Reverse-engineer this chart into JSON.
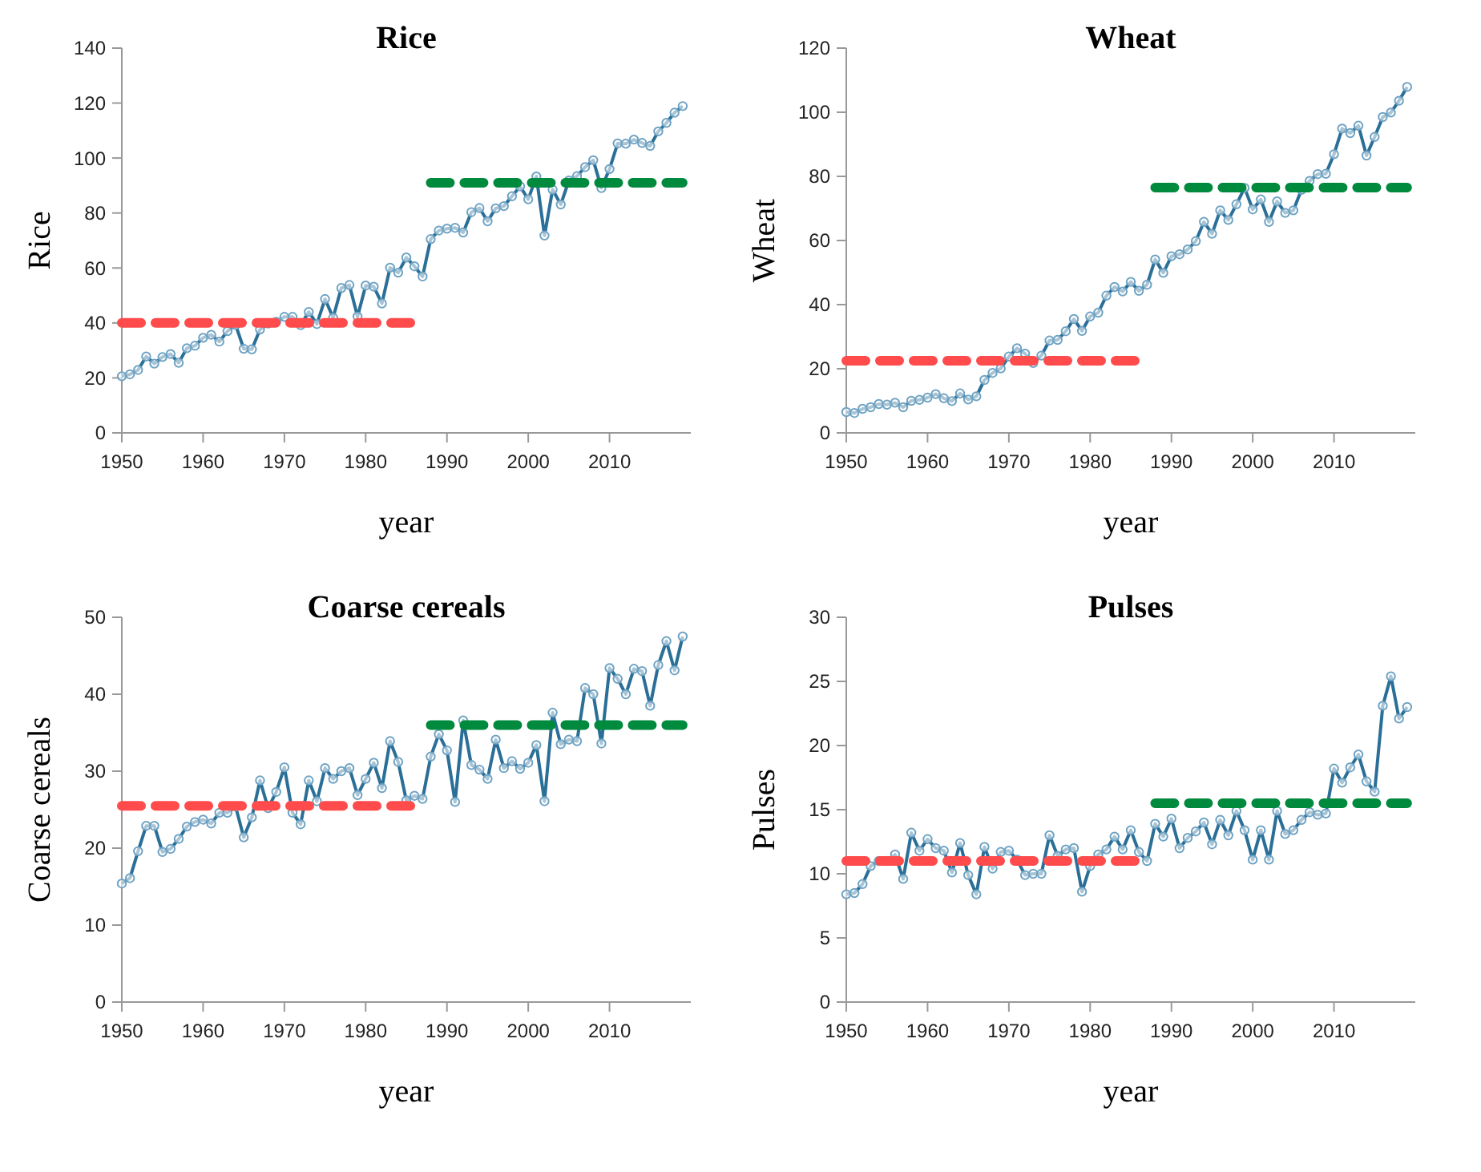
{
  "chart_data": [
    {
      "type": "line",
      "title": "Rice",
      "xlabel": "year",
      "ylabel": "Rice",
      "xlim": [
        1950,
        2020
      ],
      "xticks": [
        1950,
        1960,
        1970,
        1980,
        1990,
        2000,
        2010
      ],
      "ylim": [
        0,
        140
      ],
      "yticks": [
        0,
        20,
        40,
        60,
        80,
        100,
        120,
        140
      ],
      "series": [
        {
          "color": "#2a6f97",
          "marker": "circle",
          "x": [
            1950,
            1951,
            1952,
            1953,
            1954,
            1955,
            1956,
            1957,
            1958,
            1959,
            1960,
            1961,
            1962,
            1963,
            1964,
            1965,
            1966,
            1967,
            1968,
            1969,
            1970,
            1971,
            1972,
            1973,
            1974,
            1975,
            1976,
            1977,
            1978,
            1979,
            1980,
            1981,
            1982,
            1983,
            1984,
            1985,
            1986,
            1987,
            1988,
            1989,
            1990,
            1991,
            1992,
            1993,
            1994,
            1995,
            1996,
            1997,
            1998,
            1999,
            2000,
            2001,
            2002,
            2003,
            2004,
            2005,
            2006,
            2007,
            2008,
            2009,
            2010,
            2011,
            2012,
            2013,
            2014,
            2015,
            2016,
            2017,
            2018,
            2019
          ],
          "values": [
            20.6,
            21.3,
            22.9,
            27.8,
            25.2,
            27.6,
            28.7,
            25.5,
            30.8,
            31.7,
            34.6,
            35.7,
            33.2,
            37.0,
            39.3,
            30.6,
            30.4,
            37.6,
            39.8,
            40.4,
            42.2,
            42.2,
            39.2,
            44.0,
            39.6,
            48.7,
            41.9,
            52.7,
            53.8,
            42.3,
            53.6,
            53.2,
            47.1,
            60.1,
            58.3,
            63.8,
            60.6,
            56.9,
            70.5,
            73.6,
            74.3,
            74.6,
            72.9,
            80.3,
            81.8,
            77.0,
            81.7,
            82.5,
            86.1,
            89.7,
            85.0,
            93.3,
            71.8,
            88.5,
            83.1,
            91.8,
            93.4,
            96.7,
            99.2,
            89.1,
            96.0,
            105.3,
            105.2,
            106.7,
            105.5,
            104.4,
            109.7,
            112.8,
            116.5,
            118.9
          ]
        },
        {
          "type": "line",
          "color": "#ff4b4b",
          "marker": "none",
          "line_style": "dashed",
          "x": [
            1950,
            1987
          ],
          "values": [
            40,
            40
          ]
        },
        {
          "type": "line",
          "color": "#008a3e",
          "marker": "none",
          "line_style": "dashed",
          "x": [
            1988,
            2019
          ],
          "values": [
            91,
            91
          ]
        }
      ]
    },
    {
      "type": "line",
      "title": "Wheat",
      "xlabel": "year",
      "ylabel": "Wheat",
      "xlim": [
        1950,
        2020
      ],
      "xticks": [
        1950,
        1960,
        1970,
        1980,
        1990,
        2000,
        2010
      ],
      "ylim": [
        0,
        120
      ],
      "yticks": [
        0,
        20,
        40,
        60,
        80,
        100,
        120
      ],
      "series": [
        {
          "color": "#2a6f97",
          "marker": "circle",
          "x": [
            1950,
            1951,
            1952,
            1953,
            1954,
            1955,
            1956,
            1957,
            1958,
            1959,
            1960,
            1961,
            1962,
            1963,
            1964,
            1965,
            1966,
            1967,
            1968,
            1969,
            1970,
            1971,
            1972,
            1973,
            1974,
            1975,
            1976,
            1977,
            1978,
            1979,
            1980,
            1981,
            1982,
            1983,
            1984,
            1985,
            1986,
            1987,
            1988,
            1989,
            1990,
            1991,
            1992,
            1993,
            1994,
            1995,
            1996,
            1997,
            1998,
            1999,
            2000,
            2001,
            2002,
            2003,
            2004,
            2005,
            2006,
            2007,
            2008,
            2009,
            2010,
            2011,
            2012,
            2013,
            2014,
            2015,
            2016,
            2017,
            2018,
            2019
          ],
          "values": [
            6.5,
            6.2,
            7.5,
            8.0,
            9.0,
            8.8,
            9.4,
            8.0,
            10.0,
            10.3,
            11.0,
            12.1,
            10.8,
            9.9,
            12.3,
            10.4,
            11.4,
            16.5,
            18.7,
            20.1,
            23.8,
            26.4,
            24.7,
            21.8,
            24.1,
            28.8,
            29.0,
            31.7,
            35.5,
            31.8,
            36.3,
            37.5,
            42.8,
            45.5,
            44.1,
            47.1,
            44.3,
            46.2,
            54.1,
            49.9,
            55.1,
            55.7,
            57.2,
            59.8,
            65.8,
            62.1,
            69.4,
            66.4,
            71.3,
            76.4,
            69.7,
            72.8,
            65.8,
            72.2,
            68.6,
            69.4,
            75.8,
            78.6,
            80.7,
            80.8,
            86.9,
            94.9,
            93.5,
            95.8,
            86.5,
            92.3,
            98.5,
            99.9,
            103.6,
            107.9
          ]
        },
        {
          "type": "line",
          "color": "#ff4b4b",
          "marker": "none",
          "line_style": "dashed",
          "x": [
            1950,
            1987
          ],
          "values": [
            22.5,
            22.5
          ]
        },
        {
          "type": "line",
          "color": "#008a3e",
          "marker": "none",
          "line_style": "dashed",
          "x": [
            1988,
            2019
          ],
          "values": [
            76.5,
            76.5
          ]
        }
      ]
    },
    {
      "type": "line",
      "title": "Coarse cereals",
      "xlabel": "year",
      "ylabel": "Coarse cereals",
      "xlim": [
        1950,
        2020
      ],
      "xticks": [
        1950,
        1960,
        1970,
        1980,
        1990,
        2000,
        2010
      ],
      "ylim": [
        0,
        50
      ],
      "yticks": [
        0,
        10,
        20,
        30,
        40,
        50
      ],
      "series": [
        {
          "color": "#2a6f97",
          "marker": "circle",
          "x": [
            1950,
            1951,
            1952,
            1953,
            1954,
            1955,
            1956,
            1957,
            1958,
            1959,
            1960,
            1961,
            1962,
            1963,
            1964,
            1965,
            1966,
            1967,
            1968,
            1969,
            1970,
            1971,
            1972,
            1973,
            1974,
            1975,
            1976,
            1977,
            1978,
            1979,
            1980,
            1981,
            1982,
            1983,
            1984,
            1985,
            1986,
            1987,
            1988,
            1989,
            1990,
            1991,
            1992,
            1993,
            1994,
            1995,
            1996,
            1997,
            1998,
            1999,
            2000,
            2001,
            2002,
            2003,
            2004,
            2005,
            2006,
            2007,
            2008,
            2009,
            2010,
            2011,
            2012,
            2013,
            2014,
            2015,
            2016,
            2017,
            2018,
            2019
          ],
          "values": [
            15.4,
            16.1,
            19.6,
            22.9,
            22.9,
            19.5,
            19.9,
            21.2,
            22.8,
            23.4,
            23.7,
            23.2,
            24.6,
            24.6,
            25.4,
            21.4,
            24.0,
            28.8,
            25.2,
            27.3,
            30.5,
            24.6,
            23.1,
            28.8,
            26.1,
            30.4,
            29.0,
            30.0,
            30.4,
            26.9,
            29.0,
            31.1,
            27.8,
            33.9,
            31.2,
            26.2,
            26.8,
            26.4,
            31.9,
            34.8,
            32.7,
            26.0,
            36.6,
            30.8,
            30.2,
            29.0,
            34.1,
            30.4,
            31.3,
            30.3,
            31.1,
            33.4,
            26.1,
            37.6,
            33.5,
            34.1,
            33.9,
            40.8,
            40.0,
            33.6,
            43.4,
            42.0,
            40.0,
            43.3,
            43.0,
            38.5,
            43.8,
            46.9,
            43.1,
            47.5
          ]
        },
        {
          "type": "line",
          "color": "#ff4b4b",
          "marker": "none",
          "line_style": "dashed",
          "x": [
            1950,
            1987
          ],
          "values": [
            25.5,
            25.5
          ]
        },
        {
          "type": "line",
          "color": "#008a3e",
          "marker": "none",
          "line_style": "dashed",
          "x": [
            1988,
            2019
          ],
          "values": [
            36,
            36
          ]
        }
      ]
    },
    {
      "type": "line",
      "title": "Pulses",
      "xlabel": "year",
      "ylabel": "Pulses",
      "xlim": [
        1950,
        2020
      ],
      "xticks": [
        1950,
        1960,
        1970,
        1980,
        1990,
        2000,
        2010
      ],
      "ylim": [
        0,
        30
      ],
      "yticks": [
        0,
        5,
        10,
        15,
        20,
        25,
        30
      ],
      "series": [
        {
          "color": "#2a6f97",
          "marker": "circle",
          "x": [
            1950,
            1951,
            1952,
            1953,
            1954,
            1955,
            1956,
            1957,
            1958,
            1959,
            1960,
            1961,
            1962,
            1963,
            1964,
            1965,
            1966,
            1967,
            1968,
            1969,
            1970,
            1971,
            1972,
            1973,
            1974,
            1975,
            1976,
            1977,
            1978,
            1979,
            1980,
            1981,
            1982,
            1983,
            1984,
            1985,
            1986,
            1987,
            1988,
            1989,
            1990,
            1991,
            1992,
            1993,
            1994,
            1995,
            1996,
            1997,
            1998,
            1999,
            2000,
            2001,
            2002,
            2003,
            2004,
            2005,
            2006,
            2007,
            2008,
            2009,
            2010,
            2011,
            2012,
            2013,
            2014,
            2015,
            2016,
            2017,
            2018,
            2019
          ],
          "values": [
            8.4,
            8.5,
            9.2,
            10.6,
            11.0,
            11.0,
            11.5,
            9.6,
            13.2,
            11.8,
            12.7,
            12.0,
            11.8,
            10.1,
            12.4,
            9.9,
            8.4,
            12.1,
            10.4,
            11.7,
            11.8,
            11.1,
            9.9,
            10.0,
            10.0,
            13.0,
            11.4,
            11.9,
            12.0,
            8.6,
            10.6,
            11.5,
            11.9,
            12.9,
            11.9,
            13.4,
            11.7,
            11.0,
            13.9,
            12.9,
            14.3,
            12.0,
            12.8,
            13.3,
            14.0,
            12.3,
            14.2,
            13.0,
            14.9,
            13.4,
            11.1,
            13.4,
            11.1,
            14.9,
            13.1,
            13.4,
            14.2,
            14.8,
            14.6,
            14.7,
            18.2,
            17.1,
            18.3,
            19.3,
            17.2,
            16.4,
            23.1,
            25.4,
            22.1,
            23.0
          ]
        },
        {
          "type": "line",
          "color": "#ff4b4b",
          "marker": "none",
          "line_style": "dashed",
          "x": [
            1950,
            1987
          ],
          "values": [
            11,
            11
          ]
        },
        {
          "type": "line",
          "color": "#008a3e",
          "marker": "none",
          "line_style": "dashed",
          "x": [
            1988,
            2019
          ],
          "values": [
            15.5,
            15.5
          ]
        }
      ]
    }
  ]
}
